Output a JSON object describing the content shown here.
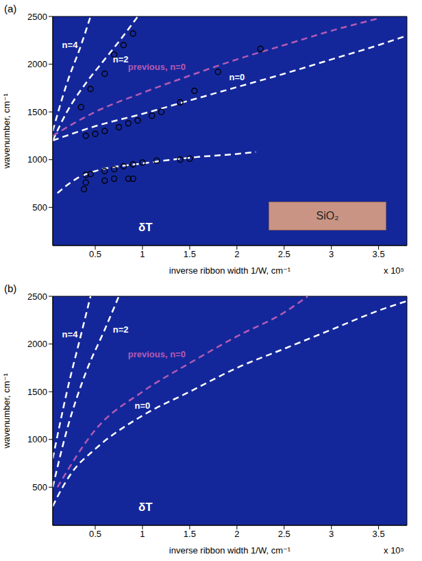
{
  "chart_data": [
    {
      "type": "line",
      "title": "(a)",
      "annotations": [
        "δT",
        "SiO₂"
      ],
      "x_label": "inverse ribbon width 1/W, cm⁻¹",
      "x_scale_label": "x 10⁵",
      "y_label": "wavenumber, cm⁻¹",
      "xlim": [
        0.05,
        3.8
      ],
      "xticks": [
        0.5,
        1,
        1.5,
        2,
        2.5,
        3,
        3.5
      ],
      "ylim": [
        100,
        2500
      ],
      "yticks": [
        500,
        1000,
        1500,
        2000,
        2500
      ],
      "grid": false,
      "series": [
        {
          "name": "n=4",
          "color": "#ffffff",
          "line_style": "dashed",
          "x": [
            0.05,
            0.2,
            0.35,
            0.45
          ],
          "values": [
            1300,
            1800,
            2200,
            2500
          ]
        },
        {
          "name": "n=2",
          "color": "#ffffff",
          "line_style": "dashed",
          "x": [
            0.05,
            0.2,
            0.4,
            0.6,
            0.8,
            0.95
          ],
          "values": [
            1200,
            1500,
            1800,
            2050,
            2300,
            2500
          ]
        },
        {
          "name": "previous, n=0",
          "color": "#b35cb3",
          "line_style": "dashed",
          "x": [
            0.05,
            0.5,
            1,
            1.5,
            2,
            2.5,
            3,
            3.5
          ],
          "values": [
            1250,
            1500,
            1700,
            1880,
            2050,
            2200,
            2350,
            2480
          ]
        },
        {
          "name": "n=0",
          "color": "#ffffff",
          "line_style": "dashed",
          "x": [
            0.05,
            0.5,
            1,
            1.5,
            2,
            2.5,
            3,
            3.5,
            3.8
          ],
          "values": [
            1200,
            1350,
            1480,
            1620,
            1760,
            1900,
            2050,
            2200,
            2300
          ]
        },
        {
          "color": "#ffffff",
          "line_style": "dashed",
          "x": [
            0.1,
            0.3,
            0.5,
            1,
            1.5,
            2,
            2.2
          ],
          "values": [
            650,
            800,
            880,
            960,
            1020,
            1060,
            1080
          ]
        },
        {
          "type": "scatter",
          "marker": "circle",
          "color": "#000000",
          "x": [
            0.4,
            0.5,
            0.6,
            0.75,
            0.85,
            0.95,
            1.1,
            1.2,
            1.4,
            1.55,
            1.8,
            2.25,
            0.35,
            0.45,
            0.6,
            0.7,
            0.8,
            0.9,
            0.4,
            0.45,
            0.6,
            0.7,
            0.8,
            0.9,
            1,
            1.15,
            1.4,
            1.5,
            0.38,
            0.4,
            0.6,
            0.7,
            0.85,
            0.9
          ],
          "values": [
            1250,
            1270,
            1300,
            1340,
            1380,
            1410,
            1460,
            1500,
            1600,
            1720,
            1920,
            2160,
            1550,
            1740,
            1900,
            2100,
            2200,
            2320,
            840,
            850,
            880,
            900,
            930,
            950,
            970,
            990,
            1000,
            1010,
            690,
            760,
            780,
            800,
            800,
            800
          ]
        }
      ]
    },
    {
      "type": "line",
      "title": "(b)",
      "annotations": [
        "δT"
      ],
      "x_label": "inverse ribbon width 1/W, cm⁻¹",
      "x_scale_label": "x 10⁵",
      "y_label": "wavenumber, cm⁻¹",
      "xlim": [
        0.05,
        3.8
      ],
      "xticks": [
        0.5,
        1,
        1.5,
        2,
        2.5,
        3,
        3.5
      ],
      "ylim": [
        100,
        2500
      ],
      "yticks": [
        500,
        1000,
        1500,
        2000,
        2500
      ],
      "grid": false,
      "series": [
        {
          "name": "n=4",
          "color": "#ffffff",
          "line_style": "dashed",
          "x": [
            0.05,
            0.2,
            0.35,
            0.45
          ],
          "values": [
            800,
            1500,
            2100,
            2500
          ]
        },
        {
          "name": "n=2",
          "color": "#ffffff",
          "line_style": "dashed",
          "x": [
            0.05,
            0.2,
            0.4,
            0.6,
            0.75
          ],
          "values": [
            500,
            1100,
            1700,
            2150,
            2500
          ]
        },
        {
          "name": "previous, n=0",
          "color": "#b35cb3",
          "line_style": "dashed",
          "x": [
            0.1,
            0.5,
            1,
            1.5,
            2,
            2.5,
            2.75
          ],
          "values": [
            500,
            1100,
            1500,
            1800,
            2080,
            2330,
            2500
          ]
        },
        {
          "name": "n=0",
          "color": "#ffffff",
          "line_style": "dashed",
          "x": [
            0.05,
            0.1,
            0.25,
            0.5,
            1,
            1.5,
            2,
            2.5,
            3,
            3.5,
            3.8
          ],
          "values": [
            300,
            400,
            650,
            900,
            1250,
            1500,
            1750,
            1950,
            2150,
            2350,
            2450
          ]
        }
      ]
    }
  ]
}
